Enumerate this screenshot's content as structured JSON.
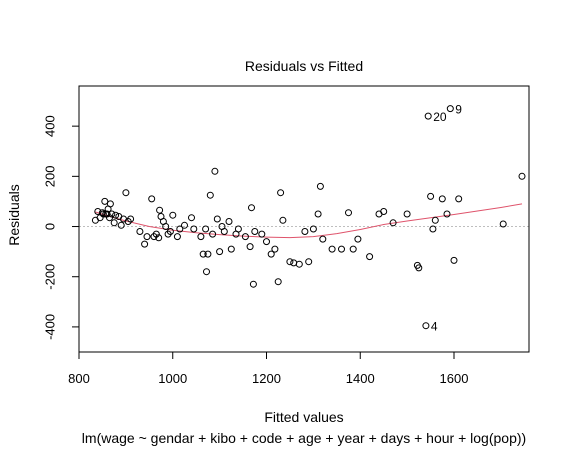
{
  "chart_data": {
    "type": "scatter",
    "title": "Residuals vs Fitted",
    "xlabel": "Fitted values",
    "ylabel": "Residuals",
    "subtitle": "lm(wage ~ gendar + kibo + code + age + year + days + hour + log(pop))",
    "xlim": [
      800,
      1760
    ],
    "ylim": [
      -500,
      560
    ],
    "x_ticks": [
      800,
      1000,
      1200,
      1400,
      1600
    ],
    "y_ticks": [
      -400,
      -200,
      0,
      200,
      400
    ],
    "zero_line": true,
    "colors": {
      "points": "#000000",
      "smoother": "#DF536B",
      "zero_line": "#BEBEBE"
    },
    "points": [
      {
        "x": 835,
        "y": 25
      },
      {
        "x": 840,
        "y": 60
      },
      {
        "x": 845,
        "y": 35
      },
      {
        "x": 850,
        "y": 55
      },
      {
        "x": 852,
        "y": 50
      },
      {
        "x": 855,
        "y": 100
      },
      {
        "x": 857,
        "y": 50
      },
      {
        "x": 860,
        "y": 50
      },
      {
        "x": 862,
        "y": 70
      },
      {
        "x": 865,
        "y": 35
      },
      {
        "x": 867,
        "y": 90
      },
      {
        "x": 870,
        "y": 50
      },
      {
        "x": 875,
        "y": 15
      },
      {
        "x": 878,
        "y": 45
      },
      {
        "x": 885,
        "y": 40
      },
      {
        "x": 890,
        "y": 5
      },
      {
        "x": 895,
        "y": 30
      },
      {
        "x": 900,
        "y": 135
      },
      {
        "x": 905,
        "y": 20
      },
      {
        "x": 910,
        "y": 30
      },
      {
        "x": 930,
        "y": -20
      },
      {
        "x": 940,
        "y": -70
      },
      {
        "x": 945,
        "y": -40
      },
      {
        "x": 955,
        "y": 110
      },
      {
        "x": 960,
        "y": -40
      },
      {
        "x": 965,
        "y": -30
      },
      {
        "x": 970,
        "y": -45
      },
      {
        "x": 972,
        "y": 65
      },
      {
        "x": 975,
        "y": 40
      },
      {
        "x": 980,
        "y": 20
      },
      {
        "x": 985,
        "y": 0
      },
      {
        "x": 990,
        "y": -30
      },
      {
        "x": 995,
        "y": -20
      },
      {
        "x": 1000,
        "y": 45
      },
      {
        "x": 1010,
        "y": -40
      },
      {
        "x": 1015,
        "y": -10
      },
      {
        "x": 1025,
        "y": 5
      },
      {
        "x": 1040,
        "y": 35
      },
      {
        "x": 1045,
        "y": -10
      },
      {
        "x": 1060,
        "y": -40
      },
      {
        "x": 1065,
        "y": -110
      },
      {
        "x": 1070,
        "y": -10
      },
      {
        "x": 1072,
        "y": -180
      },
      {
        "x": 1075,
        "y": -110
      },
      {
        "x": 1080,
        "y": 125
      },
      {
        "x": 1085,
        "y": -30
      },
      {
        "x": 1090,
        "y": 220
      },
      {
        "x": 1095,
        "y": 30
      },
      {
        "x": 1100,
        "y": -100
      },
      {
        "x": 1105,
        "y": 0
      },
      {
        "x": 1110,
        "y": -20
      },
      {
        "x": 1120,
        "y": 20
      },
      {
        "x": 1125,
        "y": -90
      },
      {
        "x": 1135,
        "y": -30
      },
      {
        "x": 1140,
        "y": -10
      },
      {
        "x": 1155,
        "y": -40
      },
      {
        "x": 1165,
        "y": -80
      },
      {
        "x": 1168,
        "y": 75
      },
      {
        "x": 1172,
        "y": -230
      },
      {
        "x": 1175,
        "y": -20
      },
      {
        "x": 1190,
        "y": -30
      },
      {
        "x": 1200,
        "y": -60
      },
      {
        "x": 1210,
        "y": -110
      },
      {
        "x": 1218,
        "y": -90
      },
      {
        "x": 1225,
        "y": -220
      },
      {
        "x": 1230,
        "y": 135
      },
      {
        "x": 1235,
        "y": 25
      },
      {
        "x": 1250,
        "y": -140
      },
      {
        "x": 1258,
        "y": -145
      },
      {
        "x": 1270,
        "y": -150
      },
      {
        "x": 1282,
        "y": -20
      },
      {
        "x": 1290,
        "y": -140
      },
      {
        "x": 1300,
        "y": -10
      },
      {
        "x": 1310,
        "y": 50
      },
      {
        "x": 1315,
        "y": 160
      },
      {
        "x": 1320,
        "y": -50
      },
      {
        "x": 1340,
        "y": -90
      },
      {
        "x": 1360,
        "y": -90
      },
      {
        "x": 1375,
        "y": 55
      },
      {
        "x": 1385,
        "y": -90
      },
      {
        "x": 1395,
        "y": -50
      },
      {
        "x": 1420,
        "y": -120
      },
      {
        "x": 1440,
        "y": 50
      },
      {
        "x": 1450,
        "y": 60
      },
      {
        "x": 1470,
        "y": 15
      },
      {
        "x": 1500,
        "y": 50
      },
      {
        "x": 1522,
        "y": -155
      },
      {
        "x": 1525,
        "y": -165
      },
      {
        "x": 1540,
        "y": -395,
        "label": "4"
      },
      {
        "x": 1545,
        "y": 440,
        "label": "20"
      },
      {
        "x": 1550,
        "y": 120
      },
      {
        "x": 1555,
        "y": -10
      },
      {
        "x": 1560,
        "y": 25
      },
      {
        "x": 1575,
        "y": 110
      },
      {
        "x": 1585,
        "y": 50
      },
      {
        "x": 1592,
        "y": 470,
        "label": "9"
      },
      {
        "x": 1600,
        "y": -135
      },
      {
        "x": 1610,
        "y": 110
      },
      {
        "x": 1705,
        "y": 10
      },
      {
        "x": 1745,
        "y": 200
      }
    ],
    "smoother": [
      {
        "x": 835,
        "y": 58
      },
      {
        "x": 870,
        "y": 38
      },
      {
        "x": 900,
        "y": 22
      },
      {
        "x": 950,
        "y": 0
      },
      {
        "x": 1000,
        "y": -15
      },
      {
        "x": 1050,
        "y": -25
      },
      {
        "x": 1100,
        "y": -32
      },
      {
        "x": 1150,
        "y": -38
      },
      {
        "x": 1200,
        "y": -42
      },
      {
        "x": 1250,
        "y": -44
      },
      {
        "x": 1300,
        "y": -40
      },
      {
        "x": 1350,
        "y": -28
      },
      {
        "x": 1400,
        "y": -12
      },
      {
        "x": 1450,
        "y": 8
      },
      {
        "x": 1500,
        "y": 22
      },
      {
        "x": 1550,
        "y": 35
      },
      {
        "x": 1600,
        "y": 48
      },
      {
        "x": 1650,
        "y": 62
      },
      {
        "x": 1700,
        "y": 76
      },
      {
        "x": 1745,
        "y": 90
      }
    ]
  }
}
